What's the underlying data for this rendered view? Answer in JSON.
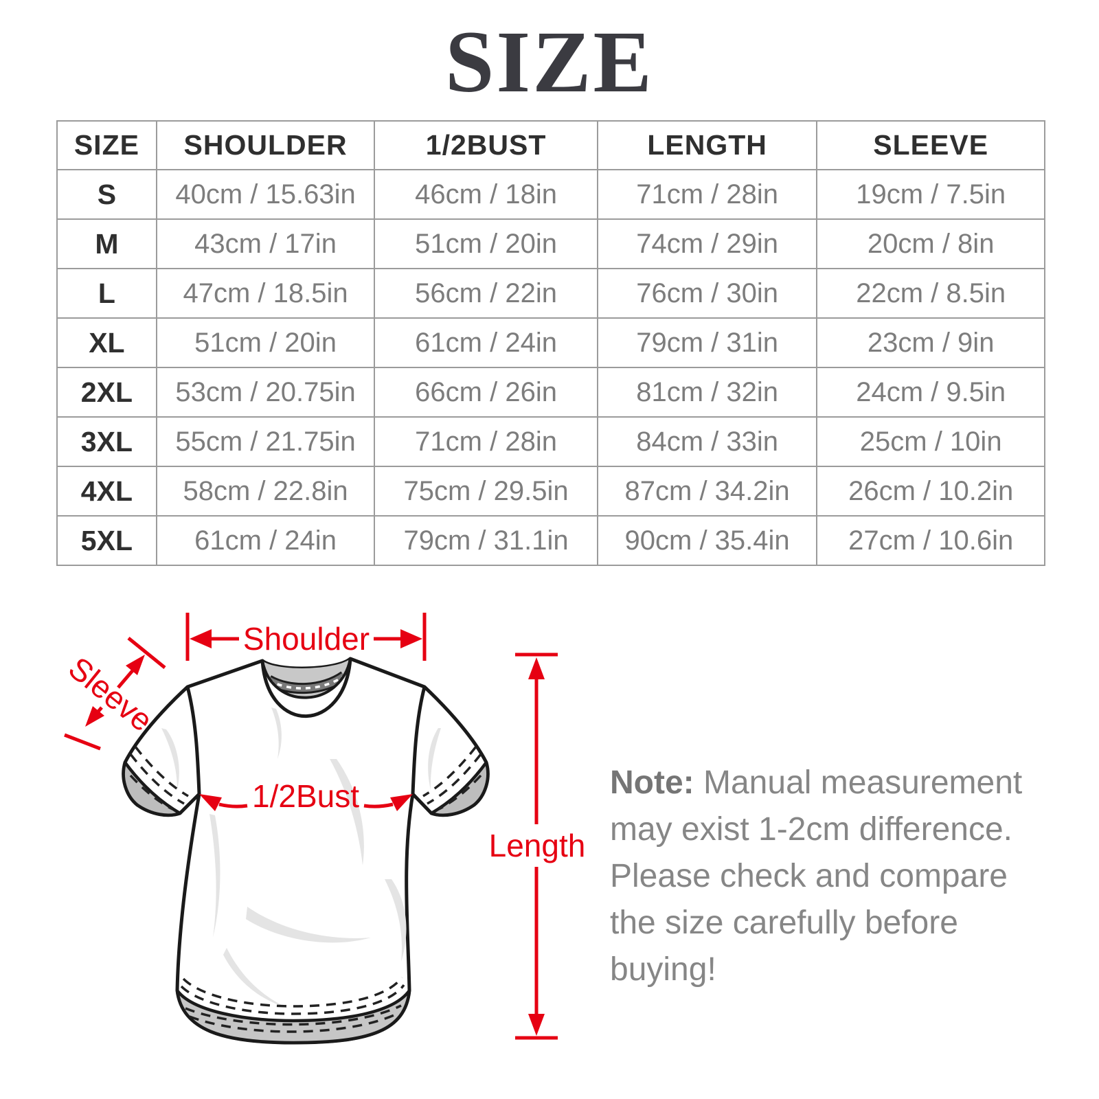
{
  "title": "SIZE",
  "table": {
    "headers": [
      "SIZE",
      "SHOULDER",
      "1/2BUST",
      "LENGTH",
      "SLEEVE"
    ],
    "rows": [
      [
        "S",
        "40cm / 15.63in",
        "46cm / 18in",
        "71cm / 28in",
        "19cm / 7.5in"
      ],
      [
        "M",
        "43cm / 17in",
        "51cm / 20in",
        "74cm / 29in",
        "20cm / 8in"
      ],
      [
        "L",
        "47cm / 18.5in",
        "56cm / 22in",
        "76cm / 30in",
        "22cm / 8.5in"
      ],
      [
        "XL",
        "51cm / 20in",
        "61cm / 24in",
        "79cm / 31in",
        "23cm / 9in"
      ],
      [
        "2XL",
        "53cm / 20.75in",
        "66cm / 26in",
        "81cm / 32in",
        "24cm / 9.5in"
      ],
      [
        "3XL",
        "55cm / 21.75in",
        "71cm / 28in",
        "84cm / 33in",
        "25cm / 10in"
      ],
      [
        "4XL",
        "58cm / 22.8in",
        "75cm / 29.5in",
        "87cm / 34.2in",
        "26cm / 10.2in"
      ],
      [
        "5XL",
        "61cm / 24in",
        "79cm / 31.1in",
        "90cm / 35.4in",
        "27cm / 10.6in"
      ]
    ]
  },
  "diagram": {
    "labels": {
      "shoulder": "Shoulder",
      "sleeve": "Sleeve",
      "bust": "1/2Bust",
      "length": "Length"
    },
    "accent_red": "#e60012"
  },
  "note": {
    "label": "Note:",
    "text": " Manual measurement may exist 1-2cm difference. Please check and compare the size carefully before buying!"
  }
}
